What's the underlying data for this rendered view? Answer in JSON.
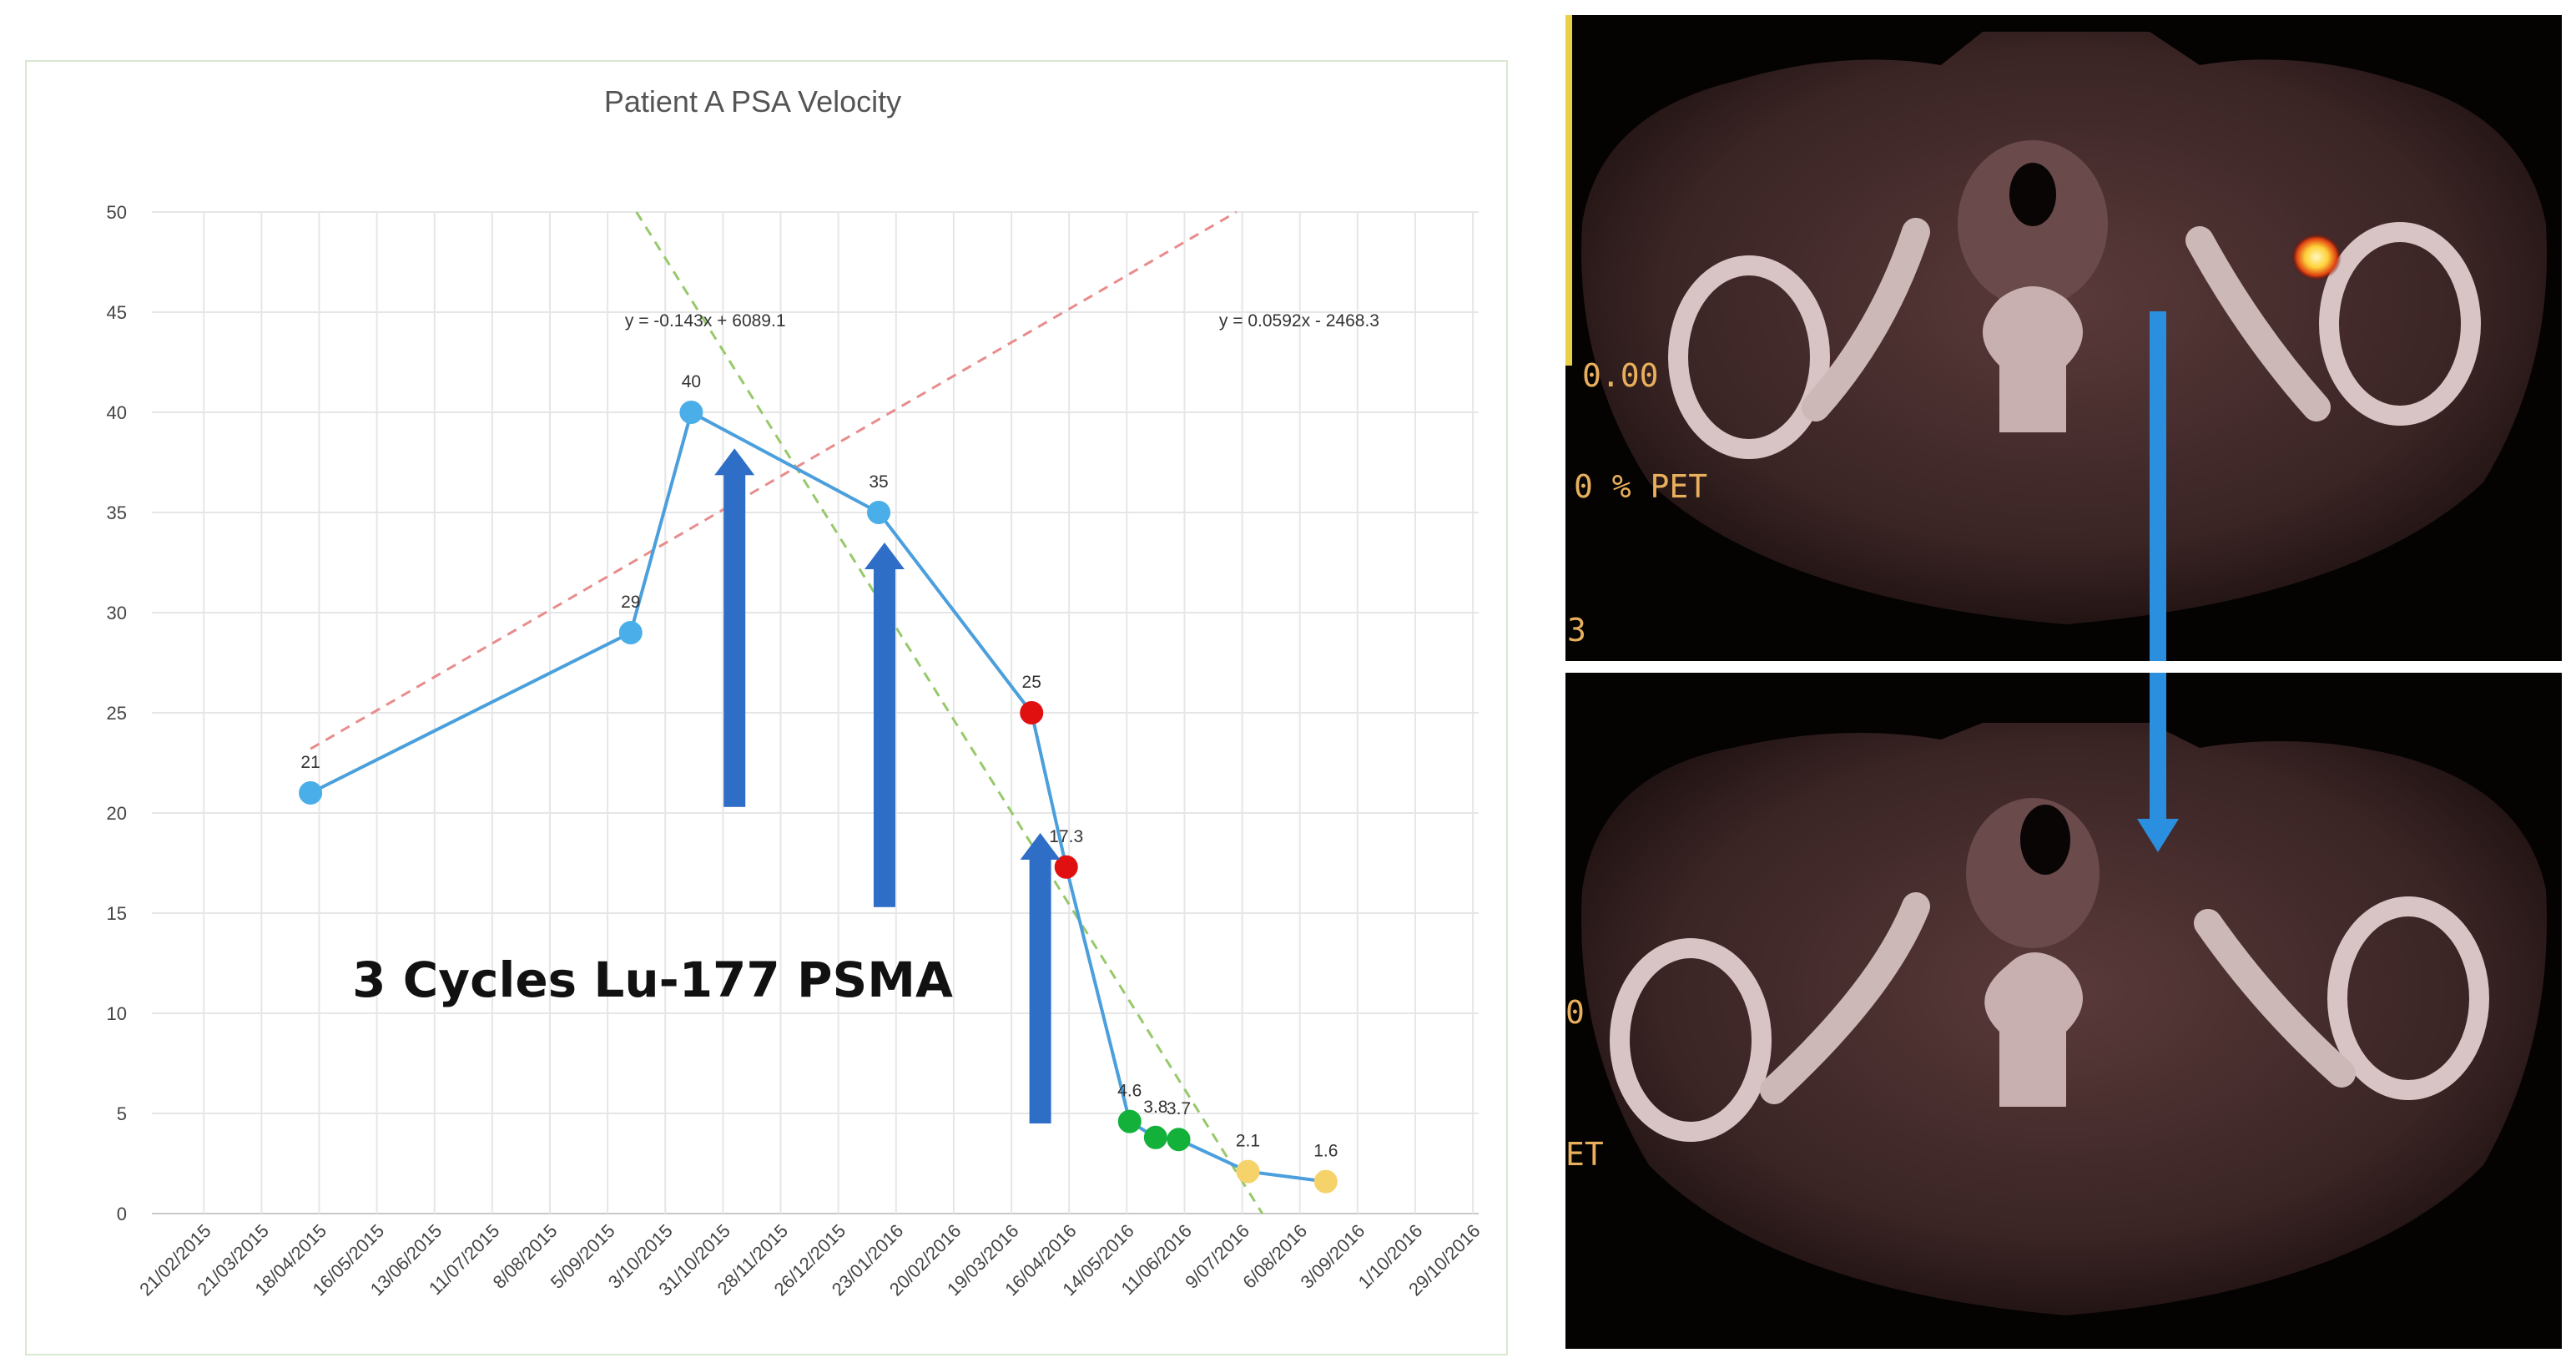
{
  "chart_data": {
    "type": "line",
    "title": "Patient A PSA Velocity",
    "xlabel": "",
    "ylabel": "",
    "ylim": [
      0,
      50
    ],
    "yticks": [
      0,
      5,
      10,
      15,
      20,
      25,
      30,
      35,
      40,
      45,
      50
    ],
    "xtick_labels": [
      "21/02/2015",
      "21/03/2015",
      "18/04/2015",
      "16/05/2015",
      "13/06/2015",
      "11/07/2015",
      "8/08/2015",
      "5/09/2015",
      "3/10/2015",
      "31/10/2015",
      "28/11/2015",
      "26/12/2015",
      "23/01/2016",
      "20/02/2016",
      "19/03/2016",
      "16/04/2016",
      "14/05/2016",
      "11/06/2016",
      "9/07/2016",
      "6/08/2016",
      "3/09/2016",
      "1/10/2016",
      "29/10/2016"
    ],
    "xlim": [
      -0.9,
      22.1
    ],
    "series": [
      {
        "name": "PSA",
        "line_color": "#4a9fdc",
        "points": [
          {
            "x": 1.85,
            "y": 21,
            "label": "21",
            "color": "#4aaee8"
          },
          {
            "x": 7.4,
            "y": 29,
            "label": "29",
            "color": "#4aaee8"
          },
          {
            "x": 8.45,
            "y": 40,
            "label": "40",
            "color": "#4aaee8"
          },
          {
            "x": 11.7,
            "y": 35,
            "label": "35",
            "color": "#4aaee8"
          },
          {
            "x": 14.35,
            "y": 25,
            "label": "25",
            "color": "#e01010"
          },
          {
            "x": 14.95,
            "y": 17.3,
            "label": "17.3",
            "color": "#e01010"
          },
          {
            "x": 16.05,
            "y": 4.6,
            "label": "4.6",
            "color": "#13b13a"
          },
          {
            "x": 16.5,
            "y": 3.8,
            "label": "3.8",
            "color": "#13b13a"
          },
          {
            "x": 16.9,
            "y": 3.7,
            "label": "3.7",
            "color": "#13b13a"
          },
          {
            "x": 18.1,
            "y": 2.1,
            "label": "2.1",
            "color": "#f5d36a"
          },
          {
            "x": 19.45,
            "y": 1.6,
            "label": "1.6",
            "color": "#f5d36a"
          }
        ]
      }
    ],
    "trendlines": [
      {
        "equation": "y = -0.143x + 6089.1",
        "color": "#96c96a",
        "from": {
          "x": 7.5,
          "y": 50
        },
        "to": {
          "x": 18.35,
          "y": 0
        }
      },
      {
        "equation": "y = 0.0592x - 2468.3",
        "color": "#e88c8c",
        "from": {
          "x": 1.85,
          "y": 23.2
        },
        "to": {
          "x": 17.9,
          "y": 50
        }
      }
    ],
    "treatment_arrows": [
      {
        "x": 9.2,
        "y_from": 20.3,
        "y_to": 38.2,
        "color": "#2e6ec7"
      },
      {
        "x": 11.8,
        "y_from": 15.3,
        "y_to": 33.5,
        "color": "#2e6ec7"
      },
      {
        "x": 14.5,
        "y_from": 4.5,
        "y_to": 19.0,
        "color": "#2e6ec7"
      }
    ],
    "annotation": "3 Cycles Lu-177 PSMA"
  },
  "scans": {
    "top_overlay": [
      "0.00",
      "0 % PET",
      "3"
    ],
    "bottom_overlay": [
      "0",
      "ET"
    ],
    "arrow_color": "#2b8fe0",
    "hotspot_color": "#ffd23a"
  }
}
